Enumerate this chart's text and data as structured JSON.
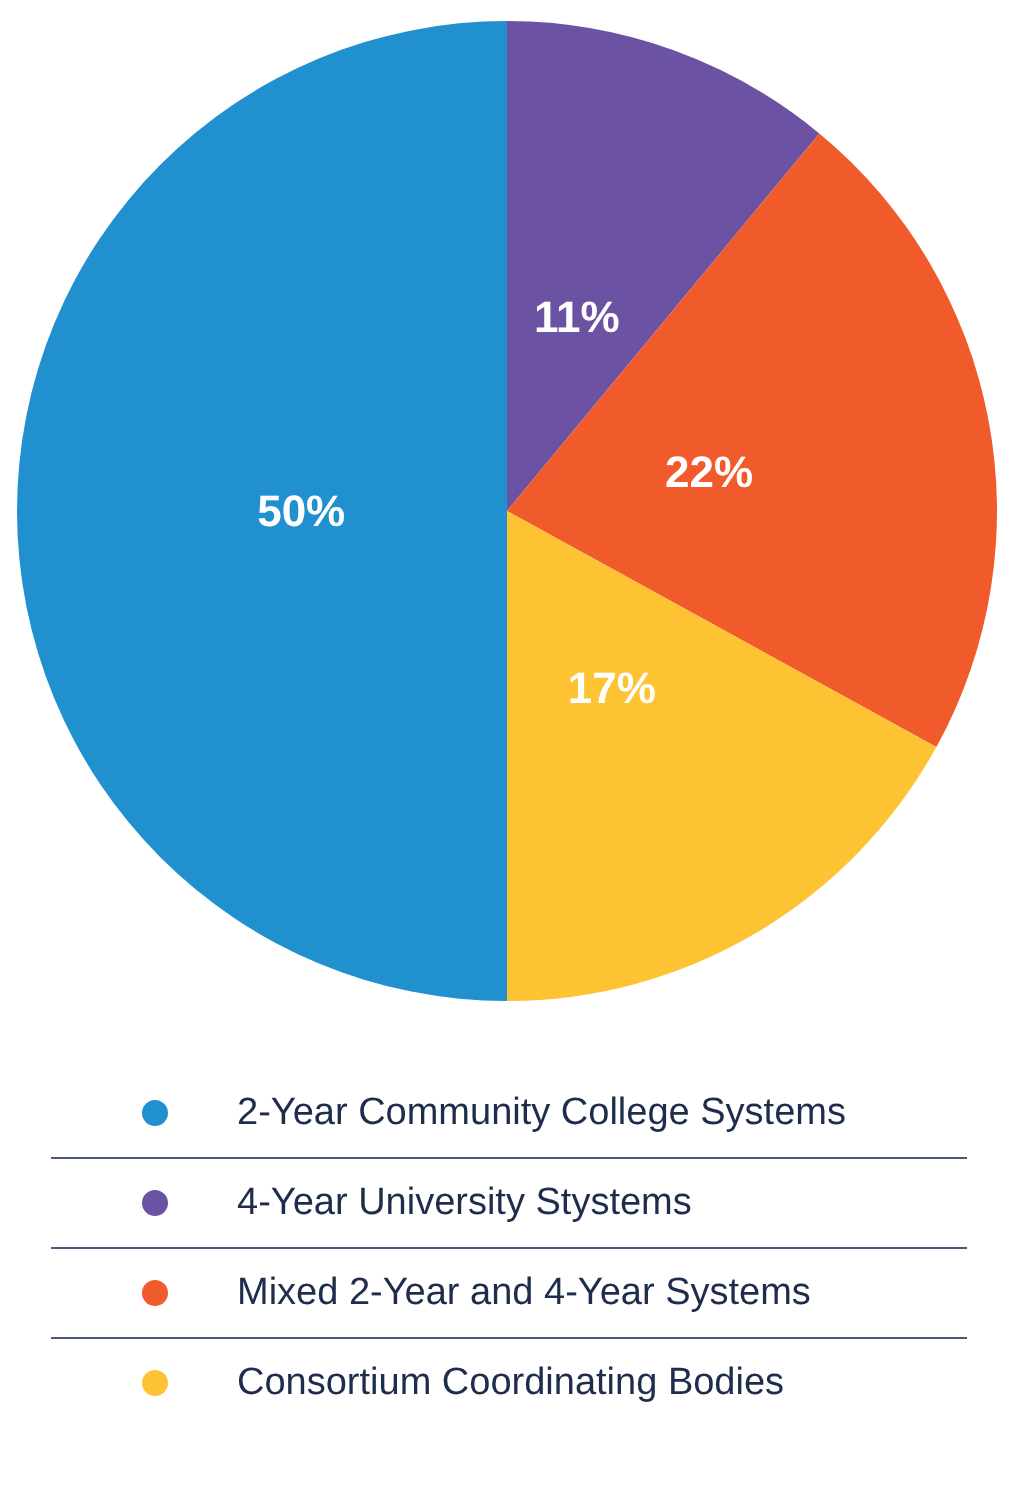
{
  "chart_data": {
    "type": "pie",
    "categories": [
      "2-Year Community College Systems",
      "4-Year University Stystems",
      "Mixed 2-Year and 4-Year Systems",
      "Consortium Coordinating Bodies"
    ],
    "values": [
      50,
      11,
      22,
      17
    ],
    "colors": [
      "#2190cf",
      "#6c52a3",
      "#f15a2b",
      "#fdc332"
    ],
    "value_labels": [
      "50%",
      "11%",
      "22%",
      "17%"
    ],
    "legend": "bottom"
  }
}
